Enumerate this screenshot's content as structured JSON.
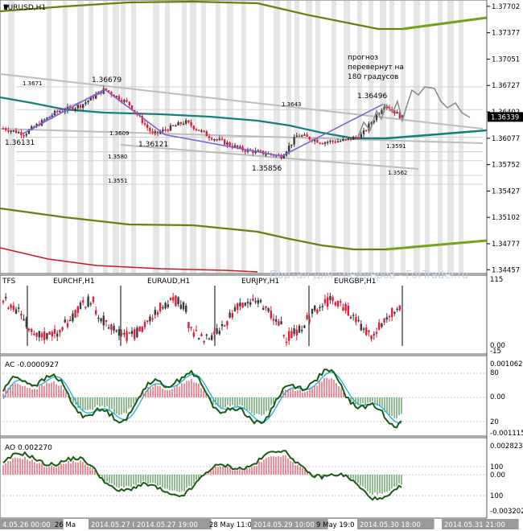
{
  "symbol_title": "EURUSD,H1",
  "forecast_note": [
    "прогноз",
    "перевернут на",
    "180 градусов"
  ],
  "watermark": "Портал для трейдеров - ForTrader.ru",
  "price_axis": {
    "ticks": [
      "1.37702",
      "1.37377",
      "1.37051",
      "1.36727",
      "1.36402",
      "1.36077",
      "1.35752",
      "1.35427",
      "1.35102",
      "1.34777",
      "1.34457"
    ],
    "current_price": "1.36339",
    "range": [
      1.3441,
      1.3778
    ]
  },
  "price_annotations": [
    {
      "text": "1.36679",
      "x_label": "2014.05.27 0",
      "y": 1.36679
    },
    {
      "text": "1.36131",
      "y": 1.36131
    },
    {
      "text": "1.36121",
      "y": 1.36121
    },
    {
      "text": "1.35856",
      "y": 1.35856
    },
    {
      "text": "1.36496",
      "y": 1.36496
    }
  ],
  "level_labels": [
    "1.3671",
    "1.3643",
    "1.3609",
    "1.3591",
    "1.3580",
    "1.3562",
    "1.3551"
  ],
  "subpanel_ticks": {
    "mtf": {
      "label": "TFS",
      "top": "115",
      "mid": "0.00",
      "bottom": "-15"
    },
    "ac": {
      "label": "AC -0.0000927",
      "top": "0.001062",
      "upper": "80",
      "mid": "0.00",
      "lower": "20",
      "bottom": "-0.001115"
    },
    "ao": {
      "label": "AO 0.002270",
      "top": "0.002823",
      "upper": "100",
      "mid": "0.00",
      "lower": "100",
      "bottom": "-0.003202"
    }
  },
  "mtf_pairs": [
    "EURCHF,H1",
    "EURAUD,H1",
    "EURJPY,H1",
    "EURGBP,H1"
  ],
  "time_axis": [
    "4.05.26 00:00",
    "26 Ma",
    "2014.05.27 0",
    "2014.05.27 19:00",
    "28 May 11:0",
    "2014.05.29 10:00",
    "9 May 19:0",
    "2014.05.30 18:00",
    "2014.05.31 21:00"
  ],
  "colors": {
    "bull": "#3a3a3a",
    "bear": "#e0203a",
    "teal": "#13807a",
    "olive": "#6b7f10",
    "olive_bright": "#76a11c",
    "wave": "#7b63d6",
    "channel": "#bdbdbd",
    "band": "#e6e6e6",
    "red_line": "#c8181f",
    "ac_fast": "#1a5a14",
    "ac_slow": "#29b6d6"
  },
  "chart_data": {
    "type": "line",
    "title": "EURUSD,H1",
    "zigzag": [
      {
        "x": "2014.05.26 00:00",
        "y": 1.36131
      },
      {
        "x": "2014.05.27 00:00",
        "y": 1.36679
      },
      {
        "x": "2014.05.27 19:00",
        "y": 1.36121
      },
      {
        "x": "2014.05.29 10:00",
        "y": 1.35856
      },
      {
        "x": "2014.05.30 18:00",
        "y": 1.36496
      }
    ],
    "ylim": [
      1.3441,
      1.3778
    ]
  }
}
